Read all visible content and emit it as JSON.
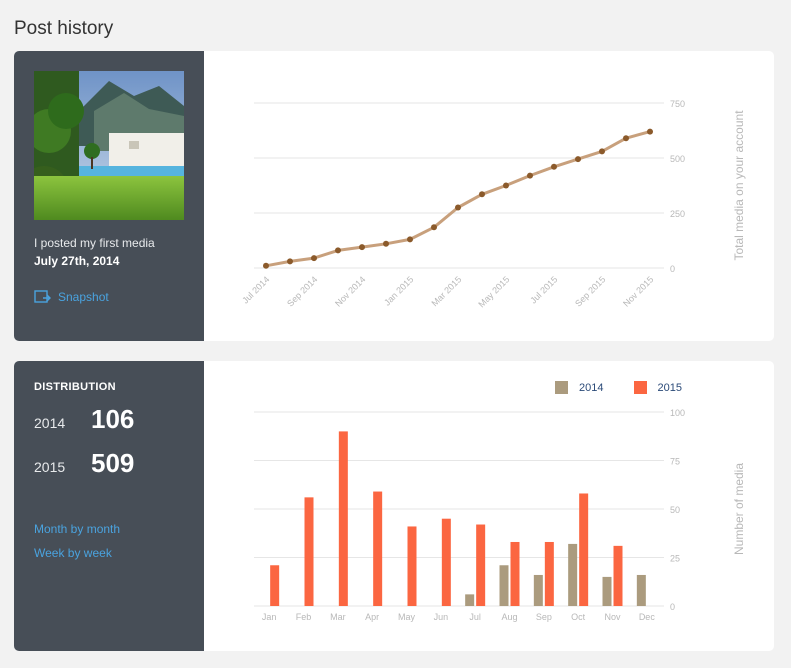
{
  "page": {
    "title": "Post history"
  },
  "first_media": {
    "text": "I posted my first media",
    "date": "July 27th, 2014",
    "snapshot_label": "Snapshot",
    "photo_icon": "photo-thumbnail"
  },
  "distribution": {
    "title": "DISTRIBUTION",
    "rows": [
      {
        "year": "2014",
        "count": "106"
      },
      {
        "year": "2015",
        "count": "509"
      }
    ],
    "links": [
      {
        "label": "Month by month"
      },
      {
        "label": "Week by week"
      }
    ]
  },
  "colors": {
    "sidebar": "#474e57",
    "link": "#4aa3df",
    "line": "#c8a07c",
    "point": "#8b5a2b",
    "bar2014": "#ab9b7e",
    "bar2015": "#fb6641",
    "grid": "#e6e6e6",
    "tick": "#b8b8b8"
  },
  "chart_data": [
    {
      "type": "line",
      "x": [
        "Jul 2014",
        "Aug 2014",
        "Sep 2014",
        "Oct 2014",
        "Nov 2014",
        "Dec 2014",
        "Jan 2015",
        "Feb 2015",
        "Mar 2015",
        "Apr 2015",
        "May 2015",
        "Jun 2015",
        "Jul 2015",
        "Aug 2015",
        "Sep 2015",
        "Oct 2015",
        "Nov 2015"
      ],
      "x_tick_labels": [
        "Jul 2014",
        "Sep 2014",
        "Nov 2014",
        "Jan 2015",
        "Mar 2015",
        "May 2015",
        "Jul 2015",
        "Sep 2015",
        "Nov 2015"
      ],
      "series": [
        {
          "values": [
            10,
            30,
            45,
            80,
            95,
            110,
            130,
            185,
            275,
            335,
            375,
            420,
            460,
            495,
            530,
            590,
            620
          ]
        }
      ],
      "ylabel": "Total media on your account",
      "yticks": [
        0,
        250,
        500,
        750
      ],
      "ylim": [
        0,
        750
      ],
      "y_axis_side": "right",
      "grid": true,
      "title": "",
      "xlabel": ""
    },
    {
      "type": "bar",
      "categories": [
        "Jan",
        "Feb",
        "Mar",
        "Apr",
        "May",
        "Jun",
        "Jul",
        "Aug",
        "Sep",
        "Oct",
        "Nov",
        "Dec"
      ],
      "series": [
        {
          "name": "2014",
          "values": [
            0,
            0,
            0,
            0,
            0,
            0,
            6,
            21,
            16,
            32,
            15,
            16
          ]
        },
        {
          "name": "2015",
          "values": [
            21,
            56,
            90,
            59,
            41,
            45,
            42,
            33,
            33,
            58,
            31,
            0
          ]
        }
      ],
      "ylabel": "Number of media",
      "yticks": [
        0,
        25,
        50,
        75,
        100
      ],
      "ylim": [
        0,
        100
      ],
      "y_axis_side": "right",
      "legend": "top-right",
      "grid": true,
      "title": "",
      "xlabel": ""
    }
  ]
}
